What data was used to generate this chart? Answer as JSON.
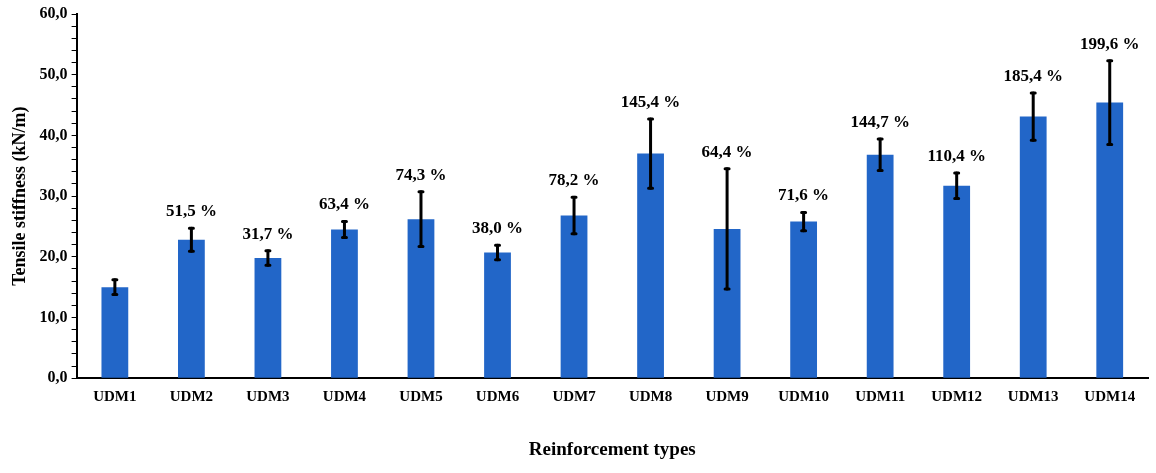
{
  "chart_data": {
    "type": "bar",
    "xlabel": "Reinforcement types",
    "ylabel": "Tensile stiffness (kN/m)",
    "categories": [
      "UDM1",
      "UDM2",
      "UDM3",
      "UDM4",
      "UDM5",
      "UDM6",
      "UDM7",
      "UDM8",
      "UDM9",
      "UDM10",
      "UDM11",
      "UDM12",
      "UDM13",
      "UDM14"
    ],
    "values": [
      15.0,
      22.8,
      19.8,
      24.5,
      26.2,
      20.7,
      26.8,
      37.0,
      24.6,
      25.8,
      36.8,
      31.7,
      43.1,
      45.4
    ],
    "errors": [
      1.2,
      1.9,
      1.2,
      1.3,
      4.5,
      1.2,
      3.0,
      5.7,
      9.9,
      1.5,
      2.6,
      2.1,
      3.9,
      6.9
    ],
    "color": "#2266c8",
    "ylim": [
      0,
      60
    ],
    "yticks": [
      {
        "value": 0,
        "label": "0,0"
      },
      {
        "value": 2,
        "label": null
      },
      {
        "value": 4,
        "label": null
      },
      {
        "value": 6,
        "label": null
      },
      {
        "value": 8,
        "label": null
      },
      {
        "value": 10,
        "label": "10,0"
      },
      {
        "value": 12,
        "label": null
      },
      {
        "value": 14,
        "label": null
      },
      {
        "value": 16,
        "label": null
      },
      {
        "value": 18,
        "label": null
      },
      {
        "value": 20,
        "label": "20,0"
      },
      {
        "value": 22,
        "label": null
      },
      {
        "value": 24,
        "label": null
      },
      {
        "value": 26,
        "label": null
      },
      {
        "value": 28,
        "label": null
      },
      {
        "value": 30,
        "label": "30,0"
      },
      {
        "value": 32,
        "label": null
      },
      {
        "value": 34,
        "label": null
      },
      {
        "value": 36,
        "label": null
      },
      {
        "value": 38,
        "label": null
      },
      {
        "value": 40,
        "label": "40,0"
      },
      {
        "value": 42,
        "label": null
      },
      {
        "value": 44,
        "label": null
      },
      {
        "value": 46,
        "label": null
      },
      {
        "value": 48,
        "label": null
      },
      {
        "value": 50,
        "label": "50,0"
      },
      {
        "value": 52,
        "label": null
      },
      {
        "value": 54,
        "label": null
      },
      {
        "value": 56,
        "label": null
      },
      {
        "value": 58,
        "label": null
      },
      {
        "value": 60,
        "label": "60,0"
      }
    ],
    "grid": false,
    "legend": false,
    "annotations": [
      {
        "text": "51,5 %",
        "x": "UDM2",
        "y": 22.8
      },
      {
        "text": "31,7 %",
        "x": "UDM3",
        "y": 19.8
      },
      {
        "text": "63,4 %",
        "x": "UDM4",
        "y": 24.5
      },
      {
        "text": "74,3 %",
        "x": "UDM5",
        "y": 26.2
      },
      {
        "text": "38,0 %",
        "x": "UDM6",
        "y": 20.7
      },
      {
        "text": "78,2 %",
        "x": "UDM7",
        "y": 26.8
      },
      {
        "text": "145,4 %",
        "x": "UDM8",
        "y": 37.0
      },
      {
        "text": "64,4 %",
        "x": "UDM9",
        "y": 34.5
      },
      {
        "text": "71,6 %",
        "x": "UDM10",
        "y": 25.8
      },
      {
        "text": "144,7 %",
        "x": "UDM11",
        "y": 36.8
      },
      {
        "text": "110,4 %",
        "x": "UDM12",
        "y": 31.7
      },
      {
        "text": "185,4 %",
        "x": "UDM13",
        "y": 43.1
      },
      {
        "text": "199,6 %",
        "x": "UDM14",
        "y": 45.4
      }
    ]
  }
}
